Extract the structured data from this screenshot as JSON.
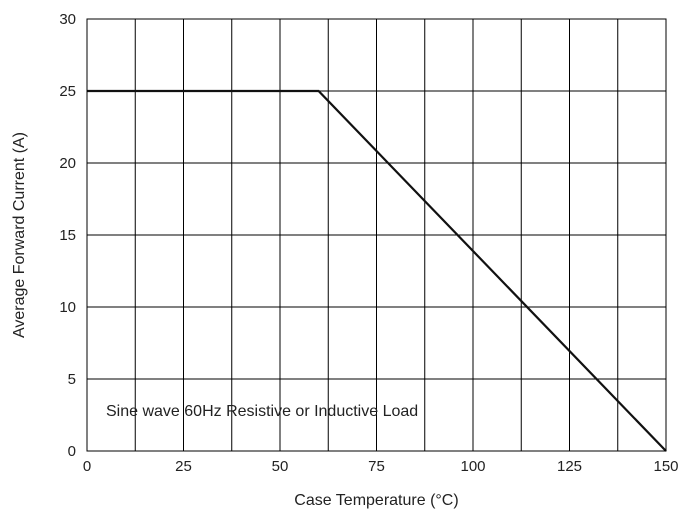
{
  "chart_data": {
    "type": "line",
    "title": "",
    "xlabel": "Case Temperature (°C)",
    "ylabel": "Average Forward Current (A)",
    "xlim": [
      0,
      150
    ],
    "ylim": [
      0,
      30
    ],
    "x_ticks": [
      0,
      25,
      50,
      75,
      100,
      125,
      150
    ],
    "y_ticks": [
      0,
      5,
      10,
      15,
      20,
      25,
      30
    ],
    "x_tick_labels": [
      "0",
      "25",
      "50",
      "75",
      "100",
      "125",
      "150"
    ],
    "y_tick_labels": [
      "0",
      "5",
      "10",
      "15",
      "20",
      "25",
      "30"
    ],
    "grid": true,
    "legend": "none",
    "series": [
      {
        "x": [
          0,
          60,
          150
        ],
        "y": [
          25,
          25,
          0
        ]
      }
    ],
    "annotation": "Sine wave 60Hz Resistive or Inductive Load",
    "colors": {
      "line": "#111111",
      "grid": "#000000",
      "text": "#222222"
    }
  }
}
